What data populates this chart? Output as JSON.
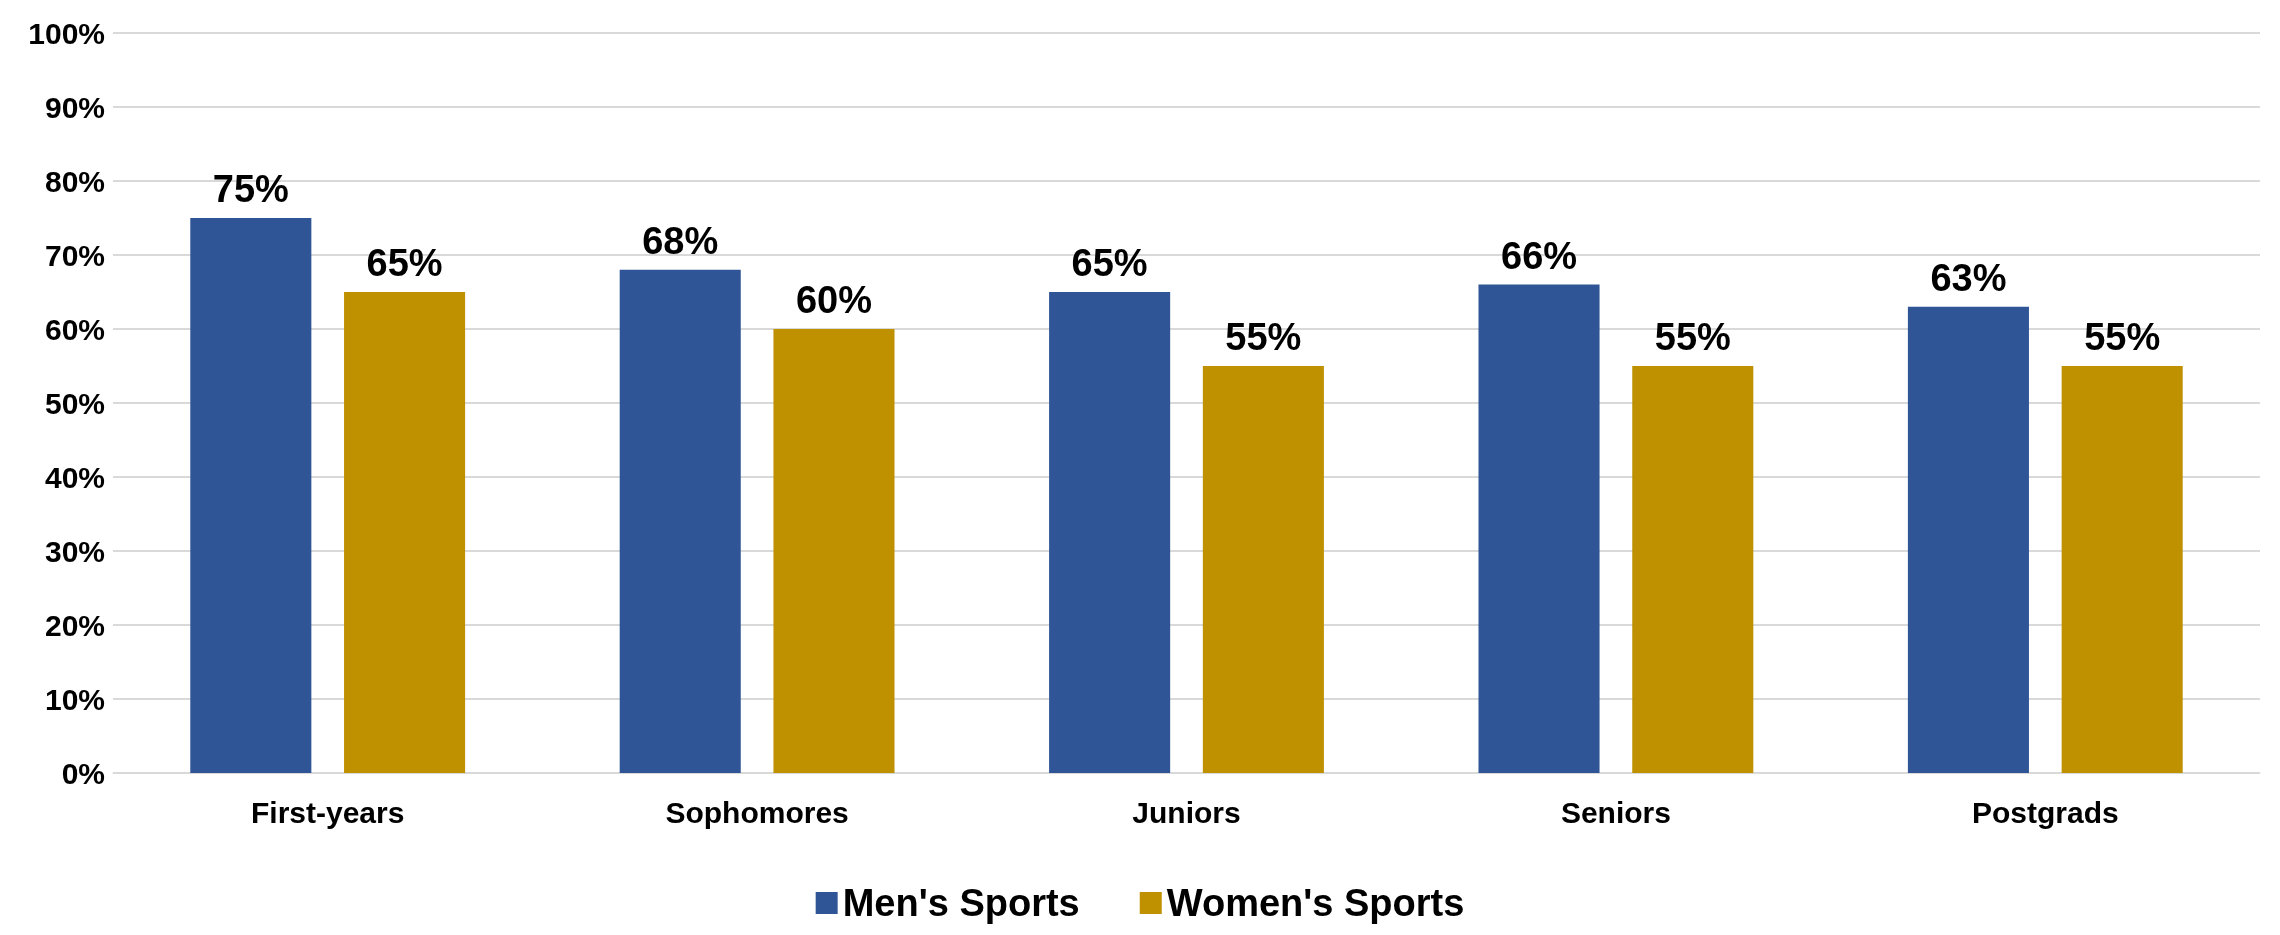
{
  "chart_data": {
    "type": "bar",
    "categories": [
      "First-years",
      "Sophomores",
      "Juniors",
      "Seniors",
      "Postgrads"
    ],
    "series": [
      {
        "name": "Men's Sports",
        "color": "#2f5597",
        "values": [
          75,
          68,
          65,
          66,
          63
        ],
        "value_labels": [
          "75%",
          "68%",
          "65%",
          "66%",
          "63%"
        ]
      },
      {
        "name": "Women's Sports",
        "color": "#bf9000",
        "values": [
          65,
          60,
          55,
          55,
          55
        ],
        "value_labels": [
          "65%",
          "60%",
          "55%",
          "55%",
          "55%"
        ]
      }
    ],
    "ylim": [
      0,
      100
    ],
    "yticks": [
      {
        "value": 0,
        "label": "0%"
      },
      {
        "value": 10,
        "label": "10%"
      },
      {
        "value": 20,
        "label": "20%"
      },
      {
        "value": 30,
        "label": "30%"
      },
      {
        "value": 40,
        "label": "40%"
      },
      {
        "value": 50,
        "label": "50%"
      },
      {
        "value": 60,
        "label": "60%"
      },
      {
        "value": 70,
        "label": "70%"
      },
      {
        "value": 80,
        "label": "80%"
      },
      {
        "value": 90,
        "label": "90%"
      },
      {
        "value": 100,
        "label": "100%"
      }
    ],
    "grid": "y",
    "legend": "bottom"
  }
}
